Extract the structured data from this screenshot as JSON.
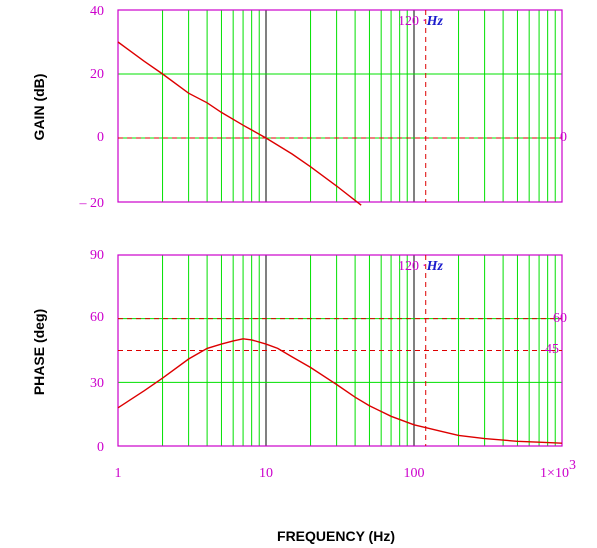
{
  "chart_data": [
    {
      "type": "line",
      "ylabel": "GAIN (dB)",
      "x_scale": "log",
      "xlim": [
        1,
        1000
      ],
      "ylim": [
        -20,
        40
      ],
      "yticks": [
        {
          "value": 40,
          "label": "40"
        },
        {
          "value": 20,
          "label": "20"
        },
        {
          "value": 0,
          "label": "0"
        },
        {
          "value": -20,
          "label": "– 20"
        }
      ],
      "grid": true,
      "series": [
        {
          "x": [
            1,
            1.5,
            2,
            3,
            4,
            5,
            7,
            10,
            15,
            20,
            30,
            40,
            44
          ],
          "y": [
            30,
            24,
            20,
            14,
            11,
            8,
            4,
            0,
            -5,
            -9,
            -15,
            -19.5,
            -21
          ]
        }
      ],
      "hline": {
        "value": 0,
        "label": "0"
      },
      "vline": {
        "value": 120,
        "label": "120",
        "sep": "·",
        "unit": "Hz"
      }
    },
    {
      "type": "line",
      "ylabel": "PHASE (deg)",
      "x_scale": "log",
      "xlim": [
        1,
        1000
      ],
      "ylim": [
        0,
        90
      ],
      "yticks": [
        {
          "value": 90,
          "label": "90"
        },
        {
          "value": 60,
          "label": "60"
        },
        {
          "value": 30,
          "label": "30"
        },
        {
          "value": 0,
          "label": "0"
        }
      ],
      "grid": true,
      "series": [
        {
          "x": [
            1,
            1.5,
            2,
            3,
            4,
            5,
            6,
            7,
            8,
            10,
            12,
            15,
            20,
            30,
            40,
            50,
            70,
            100,
            150,
            200,
            300,
            500,
            700,
            1000
          ],
          "y": [
            18,
            26,
            32,
            41,
            46,
            48,
            49.5,
            50.5,
            50,
            48,
            46,
            42,
            37,
            29,
            23,
            19,
            14,
            10,
            7,
            5,
            3.5,
            2.2,
            1.8,
            1.3
          ]
        }
      ],
      "hlines": [
        {
          "value": 60,
          "label": "60"
        },
        {
          "value": 45,
          "label": "45"
        }
      ],
      "vline": {
        "value": 120,
        "label": "120",
        "sep": "·",
        "unit": "Hz"
      },
      "xticks": [
        {
          "value": 1,
          "label": "1"
        },
        {
          "value": 10,
          "label": "10"
        },
        {
          "value": 100,
          "label": "100"
        },
        {
          "value": 1000,
          "label": "1×10",
          "sup": "3"
        }
      ],
      "xlabel": "FREQUENCY (Hz)"
    }
  ],
  "colors": {
    "axis": "#cc00cc",
    "grid": "#00e000",
    "decade": "#000000",
    "curve": "#dd0000",
    "unit": "#1a1acc"
  }
}
